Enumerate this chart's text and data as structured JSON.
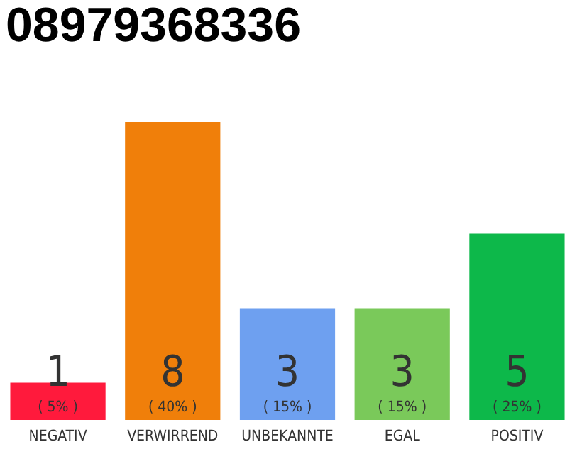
{
  "chart_data": {
    "type": "bar",
    "title": "08979368336",
    "categories": [
      "NEGATIV",
      "VERWIRREND",
      "UNBEKANNTE",
      "EGAL",
      "POSITIV"
    ],
    "values": [
      1,
      8,
      3,
      3,
      5
    ],
    "colors": [
      "#ff1a3c",
      "#f07f0a",
      "#6ea0f0",
      "#7ac95a",
      "#0db84a"
    ],
    "ylim": [
      0,
      8
    ],
    "tick_labels": "x",
    "data_labels": true,
    "annotations": [
      "( 5% )",
      "( 40% )",
      "( 15% )",
      "( 15% )",
      "( 25% )"
    ]
  }
}
